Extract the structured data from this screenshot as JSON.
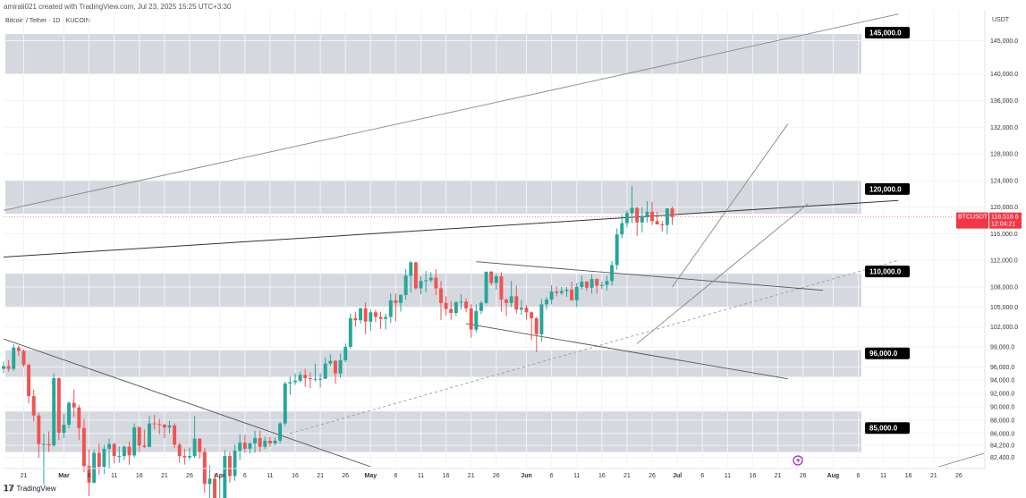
{
  "header": {
    "published_by": "amirali021 created with TradingView.com, Jul 23, 2025 15:25 UTC+3:30"
  },
  "symbol": {
    "title": "Bitcoin / Tether · 1D · KUCOIN",
    "ticker": "BTCUSDT"
  },
  "price_axis": {
    "unit": "USDT"
  },
  "footer": {
    "brand": "TradingView"
  },
  "colors": {
    "up": "#26a69a",
    "down": "#ef5350",
    "zone": "#d1d4dc",
    "label_bg": "#000000",
    "current_bg": "#f23645"
  },
  "chart_data": {
    "type": "candlestick",
    "timeframe": "1D",
    "x_range": [
      "2025-02-17",
      "2025-08-31"
    ],
    "y_range": [
      81000,
      149500
    ],
    "y_ticks": [
      82400,
      84200,
      86000,
      88000,
      90000,
      92000,
      94000,
      96000,
      99000,
      102000,
      105000,
      108000,
      112000,
      116000,
      120000,
      124000,
      128000,
      132000,
      136000,
      140000,
      145000
    ],
    "y_tick_labels": [
      "82,400.0",
      "84,200.0",
      "86,000.0",
      "88,000.0",
      "90,000.0",
      "92,000.0",
      "94,000.0",
      "96,000.0",
      "99,000.0",
      "102,000.0",
      "105,000.0",
      "108,000.0",
      "112,000.0",
      "116,000.0",
      "120,000.0",
      "124,000.0",
      "128,000.0",
      "132,000.0",
      "136,000.0",
      "140,000.0",
      "145,000.0"
    ],
    "x_ticks": [
      {
        "label": "21",
        "date": "2025-02-21",
        "major": false
      },
      {
        "label": "Mar",
        "date": "2025-03-01",
        "major": true
      },
      {
        "label": "6",
        "date": "2025-03-06",
        "major": false
      },
      {
        "label": "11",
        "date": "2025-03-11",
        "major": false
      },
      {
        "label": "16",
        "date": "2025-03-16",
        "major": false
      },
      {
        "label": "21",
        "date": "2025-03-21",
        "major": false
      },
      {
        "label": "26",
        "date": "2025-03-26",
        "major": false
      },
      {
        "label": "Apr",
        "date": "2025-04-01",
        "major": true
      },
      {
        "label": "6",
        "date": "2025-04-06",
        "major": false
      },
      {
        "label": "11",
        "date": "2025-04-11",
        "major": false
      },
      {
        "label": "16",
        "date": "2025-04-16",
        "major": false
      },
      {
        "label": "21",
        "date": "2025-04-21",
        "major": false
      },
      {
        "label": "26",
        "date": "2025-04-26",
        "major": false
      },
      {
        "label": "May",
        "date": "2025-05-01",
        "major": true
      },
      {
        "label": "6",
        "date": "2025-05-06",
        "major": false
      },
      {
        "label": "11",
        "date": "2025-05-11",
        "major": false
      },
      {
        "label": "16",
        "date": "2025-05-16",
        "major": false
      },
      {
        "label": "21",
        "date": "2025-05-21",
        "major": false
      },
      {
        "label": "26",
        "date": "2025-05-26",
        "major": false
      },
      {
        "label": "Jun",
        "date": "2025-06-01",
        "major": true
      },
      {
        "label": "6",
        "date": "2025-06-06",
        "major": false
      },
      {
        "label": "11",
        "date": "2025-06-11",
        "major": false
      },
      {
        "label": "16",
        "date": "2025-06-16",
        "major": false
      },
      {
        "label": "21",
        "date": "2025-06-21",
        "major": false
      },
      {
        "label": "26",
        "date": "2025-06-26",
        "major": false
      },
      {
        "label": "Jul",
        "date": "2025-07-01",
        "major": true
      },
      {
        "label": "6",
        "date": "2025-07-06",
        "major": false
      },
      {
        "label": "11",
        "date": "2025-07-11",
        "major": false
      },
      {
        "label": "16",
        "date": "2025-07-16",
        "major": false
      },
      {
        "label": "21",
        "date": "2025-07-21",
        "major": false
      },
      {
        "label": "26",
        "date": "2025-07-26",
        "major": false
      },
      {
        "label": "Aug",
        "date": "2025-08-01",
        "major": true
      },
      {
        "label": "6",
        "date": "2025-08-06",
        "major": false
      },
      {
        "label": "11",
        "date": "2025-08-11",
        "major": false
      },
      {
        "label": "16",
        "date": "2025-08-16",
        "major": false
      },
      {
        "label": "21",
        "date": "2025-08-21",
        "major": false
      },
      {
        "label": "26",
        "date": "2025-08-26",
        "major": false
      }
    ],
    "current_price": {
      "value": 118518.6,
      "label": "118,518.6",
      "countdown": "12:04:21"
    },
    "zones": [
      {
        "label": "145,000.0",
        "low": 140000,
        "high": 146000
      },
      {
        "label": "120,000.0",
        "low": 119000,
        "high": 124000
      },
      {
        "label": "110,000.0",
        "low": 105000,
        "high": 110000
      },
      {
        "label": "96,000.0",
        "low": 94500,
        "high": 98500
      },
      {
        "label": "85,000.0",
        "low": 83200,
        "high": 89300
      }
    ],
    "trendlines": [
      {
        "style": "solid",
        "color": "#888888",
        "start": {
          "date": "2025-02-17",
          "price": 119500
        },
        "end": {
          "date": "2025-08-14",
          "price": 149000
        }
      },
      {
        "style": "solid",
        "color": "#333333",
        "start": {
          "date": "2025-02-17",
          "price": 112500
        },
        "end": {
          "date": "2025-08-14",
          "price": 121000
        }
      },
      {
        "style": "solid",
        "color": "#555555",
        "start": {
          "date": "2025-02-17",
          "price": 100200
        },
        "end": {
          "date": "2025-05-01",
          "price": 81000
        }
      },
      {
        "style": "dashed",
        "color": "#999999",
        "start": {
          "date": "2025-04-15",
          "price": 86000
        },
        "end": {
          "date": "2025-08-14",
          "price": 112000
        }
      },
      {
        "style": "solid",
        "color": "#555555",
        "start": {
          "date": "2025-05-22",
          "price": 111800
        },
        "end": {
          "date": "2025-07-30",
          "price": 107500
        }
      },
      {
        "style": "solid",
        "color": "#555555",
        "start": {
          "date": "2025-05-20",
          "price": 102500
        },
        "end": {
          "date": "2025-07-23",
          "price": 94200
        }
      },
      {
        "style": "solid",
        "color": "#888888",
        "start": {
          "date": "2025-06-23",
          "price": 99500
        },
        "end": {
          "date": "2025-07-27",
          "price": 120500
        }
      },
      {
        "style": "solid",
        "color": "#888888",
        "start": {
          "date": "2025-06-30",
          "price": 108000
        },
        "end": {
          "date": "2025-07-23",
          "price": 132500
        }
      },
      {
        "style": "solid",
        "color": "#888888",
        "start": {
          "date": "2025-08-22",
          "price": 81000
        },
        "end": {
          "date": "2025-08-31",
          "price": 83000
        }
      }
    ],
    "candles_start": "2025-02-17",
    "candles": [
      [
        95700,
        96800,
        95000,
        96100
      ],
      [
        96100,
        97000,
        95300,
        95700
      ],
      [
        95700,
        99400,
        95400,
        98900
      ],
      [
        98900,
        99200,
        97600,
        98400
      ],
      [
        98400,
        98600,
        96000,
        96300
      ],
      [
        96300,
        96500,
        90500,
        91600
      ],
      [
        91600,
        92600,
        87800,
        88700
      ],
      [
        88700,
        89100,
        82300,
        84400
      ],
      [
        84400,
        86000,
        78300,
        84400
      ],
      [
        84400,
        86300,
        83200,
        84200
      ],
      [
        84200,
        95000,
        84000,
        94300
      ],
      [
        94300,
        94400,
        85000,
        86100
      ],
      [
        86100,
        88900,
        85300,
        87300
      ],
      [
        87300,
        90800,
        86800,
        90600
      ],
      [
        90600,
        92600,
        88500,
        89900
      ],
      [
        89900,
        90300,
        85000,
        86800
      ],
      [
        86800,
        88200,
        80200,
        81100
      ],
      [
        81100,
        83600,
        76600,
        78600
      ],
      [
        78600,
        83600,
        78500,
        83100
      ],
      [
        83100,
        84500,
        79800,
        81000
      ],
      [
        81000,
        84300,
        79900,
        83700
      ],
      [
        83700,
        85200,
        80800,
        84400
      ],
      [
        84400,
        84600,
        81500,
        82600
      ],
      [
        82600,
        84000,
        81600,
        82600
      ],
      [
        82600,
        84200,
        82000,
        84000
      ],
      [
        84000,
        84800,
        81300,
        82700
      ],
      [
        82700,
        87500,
        82400,
        86900
      ],
      [
        86900,
        87100,
        83200,
        84200
      ],
      [
        84200,
        86600,
        83800,
        84000
      ],
      [
        84000,
        88700,
        83900,
        87500
      ],
      [
        87500,
        88800,
        86600,
        87400
      ],
      [
        87400,
        88200,
        85900,
        87300
      ],
      [
        87300,
        87400,
        85300,
        86900
      ],
      [
        86900,
        87900,
        86000,
        87200
      ],
      [
        87200,
        87500,
        83800,
        84300
      ],
      [
        84300,
        84600,
        81600,
        82600
      ],
      [
        82600,
        83700,
        81300,
        82400
      ],
      [
        82400,
        83900,
        82000,
        82600
      ],
      [
        82600,
        88600,
        82300,
        85200
      ],
      [
        85200,
        85300,
        82200,
        83200
      ],
      [
        83200,
        83800,
        77100,
        78400
      ],
      [
        78400,
        81200,
        74500,
        79200
      ],
      [
        79200,
        80000,
        76200,
        76300
      ],
      [
        76300,
        79500,
        74600,
        76300
      ],
      [
        76300,
        83500,
        75700,
        82600
      ],
      [
        82600,
        83200,
        78600,
        79600
      ],
      [
        79600,
        84300,
        78900,
        83400
      ],
      [
        83400,
        85900,
        82000,
        84600
      ],
      [
        84600,
        85800,
        83100,
        83700
      ],
      [
        83700,
        84700,
        83000,
        84500
      ],
      [
        84500,
        86400,
        83100,
        85300
      ],
      [
        85300,
        86400,
        83200,
        84000
      ],
      [
        84000,
        85500,
        83700,
        84900
      ],
      [
        84900,
        85500,
        84000,
        84500
      ],
      [
        84500,
        85400,
        84200,
        84900
      ],
      [
        84900,
        87700,
        84500,
        87500
      ],
      [
        87500,
        93800,
        87100,
        93500
      ],
      [
        93500,
        94500,
        91800,
        93700
      ],
      [
        93700,
        95000,
        93300,
        93900
      ],
      [
        93900,
        95300,
        93700,
        94800
      ],
      [
        94800,
        95700,
        93000,
        94300
      ],
      [
        94300,
        95200,
        92800,
        94200
      ],
      [
        94200,
        96500,
        93800,
        94200
      ],
      [
        94200,
        95000,
        92900,
        94200
      ],
      [
        94200,
        97400,
        94200,
        96500
      ],
      [
        96500,
        97900,
        96100,
        96900
      ],
      [
        96900,
        97000,
        93500,
        95000
      ],
      [
        95000,
        98000,
        94400,
        97000
      ],
      [
        97000,
        99500,
        96700,
        99000
      ],
      [
        99000,
        104000,
        98700,
        103300
      ],
      [
        103300,
        104300,
        102000,
        103000
      ],
      [
        103000,
        104900,
        102500,
        104800
      ],
      [
        104800,
        105700,
        100900,
        102800
      ],
      [
        102800,
        104600,
        101400,
        104200
      ],
      [
        104200,
        104600,
        102700,
        103500
      ],
      [
        103500,
        104300,
        101700,
        103200
      ],
      [
        103200,
        104000,
        101600,
        103500
      ],
      [
        103500,
        107000,
        102600,
        106000
      ],
      [
        106000,
        107000,
        102800,
        105600
      ],
      [
        105600,
        106900,
        104300,
        106800
      ],
      [
        106800,
        110700,
        106100,
        109700
      ],
      [
        109700,
        111900,
        107200,
        111700
      ],
      [
        111700,
        111800,
        107600,
        107800
      ],
      [
        107800,
        109600,
        106900,
        108900
      ],
      [
        108900,
        110400,
        107200,
        109000
      ],
      [
        109000,
        110200,
        108700,
        109400
      ],
      [
        109400,
        110700,
        106800,
        107800
      ],
      [
        107800,
        108900,
        103000,
        105600
      ],
      [
        105600,
        106600,
        103700,
        104700
      ],
      [
        104700,
        105900,
        103100,
        104100
      ],
      [
        104100,
        105900,
        103600,
        105700
      ],
      [
        105700,
        106900,
        104600,
        105800
      ],
      [
        105800,
        106300,
        104200,
        104800
      ],
      [
        104800,
        105400,
        100400,
        101600
      ],
      [
        101600,
        105400,
        101200,
        104400
      ],
      [
        104400,
        105900,
        103900,
        105600
      ],
      [
        105600,
        110300,
        105400,
        110300
      ],
      [
        110300,
        110400,
        108300,
        108600
      ],
      [
        108600,
        110100,
        107600,
        109600
      ],
      [
        109600,
        110200,
        104300,
        106100
      ],
      [
        106100,
        106300,
        103600,
        105600
      ],
      [
        105600,
        108900,
        105000,
        106600
      ],
      [
        106600,
        108200,
        104000,
        104600
      ],
      [
        104600,
        106000,
        103800,
        104900
      ],
      [
        104900,
        105300,
        103100,
        104200
      ],
      [
        104200,
        104300,
        100000,
        103300
      ],
      [
        103300,
        103500,
        98200,
        100900
      ],
      [
        100900,
        106200,
        99800,
        105400
      ],
      [
        105400,
        106500,
        104600,
        106100
      ],
      [
        106100,
        108300,
        105400,
        107300
      ],
      [
        107300,
        108100,
        106600,
        107100
      ],
      [
        107100,
        108000,
        106800,
        107400
      ],
      [
        107400,
        108000,
        106500,
        107600
      ],
      [
        107600,
        108800,
        106000,
        106000
      ],
      [
        106000,
        108600,
        105000,
        108000
      ],
      [
        108000,
        109700,
        107600,
        108800
      ],
      [
        108800,
        108900,
        107400,
        107900
      ],
      [
        107900,
        109900,
        107000,
        109200
      ],
      [
        109200,
        109300,
        107000,
        108200
      ],
      [
        108200,
        108800,
        107700,
        108300
      ],
      [
        108300,
        109700,
        107500,
        108900
      ],
      [
        108900,
        111900,
        108200,
        111300
      ],
      [
        111300,
        116800,
        110600,
        115900
      ],
      [
        115900,
        118900,
        115300,
        117600
      ],
      [
        117600,
        119500,
        117000,
        119100
      ],
      [
        119100,
        123200,
        117600,
        119900
      ],
      [
        119900,
        120000,
        115700,
        117700
      ],
      [
        117700,
        120000,
        116200,
        118700
      ],
      [
        118700,
        120900,
        117700,
        119300
      ],
      [
        119300,
        120800,
        117300,
        117900
      ],
      [
        117900,
        119300,
        117400,
        117400
      ],
      [
        117400,
        117900,
        116300,
        117300
      ],
      [
        117300,
        119800,
        115900,
        119800
      ],
      [
        119800,
        120100,
        117300,
        118500
      ]
    ]
  }
}
